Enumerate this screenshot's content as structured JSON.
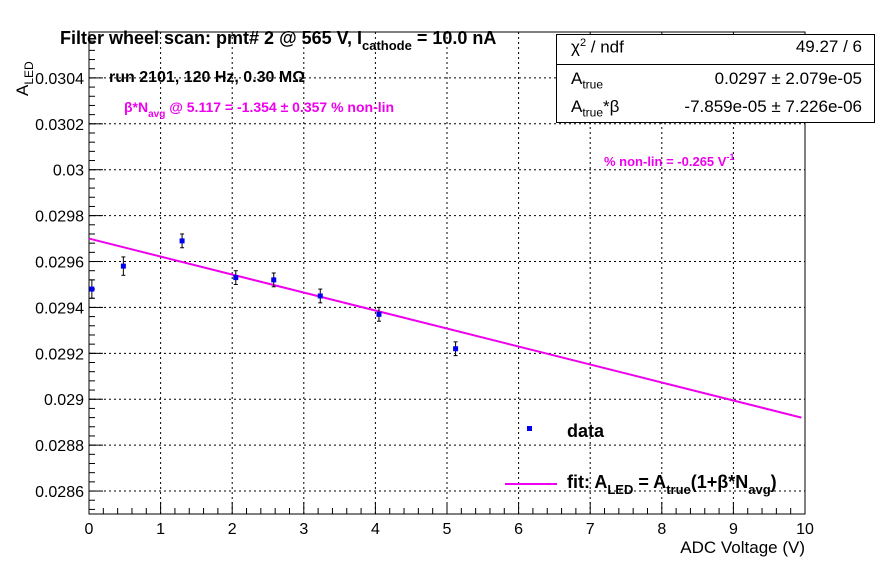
{
  "title": "Filter wheel scan: pmt#   2 @   565 V, I",
  "title_sub": "cathode",
  "title_tail": " = 10.0 nA",
  "run_info": "run 2101, 120 Hz, 0.30 MΩ",
  "nonlin_line": {
    "beta": "β*N",
    "sub": "avg",
    "tail": " @ 5.117 = -1.354 ± 0.357 % non-lin"
  },
  "nonlin_slope": {
    "text": "% non-lin = -0.265 V",
    "sup": "-1"
  },
  "stats": {
    "chi2_label": "χ",
    "chi2_sup": "2",
    "chi2_tail": " / ndf",
    "chi2_value": "49.27 / 6",
    "atrue_label": "A",
    "atrue_sub": "true",
    "atrue_value": "0.0297 ± 2.079e-05",
    "atrueb_label": "A",
    "atrueb_sub": "true",
    "atrueb_tail": "*β",
    "atrueb_value": "-7.859e-05 ± 7.226e-06"
  },
  "legend": {
    "data_label": "data",
    "fit_label": "fit: A",
    "fit_sub1": "LED",
    "fit_mid": " = A",
    "fit_sub2": "true",
    "fit_mid2": "(1+β*N",
    "fit_sub3": "avg",
    "fit_end": ")"
  },
  "colors": {
    "data": "#0000ee",
    "fit": "#ee00ee",
    "text_accent": "#ee00ee"
  },
  "chart_data": {
    "type": "scatter",
    "xlabel": "ADC Voltage (V)",
    "ylabel": "A",
    "ylabel_sub": "LED",
    "xlim": [
      0,
      10
    ],
    "ylim": [
      0.0285,
      0.0306
    ],
    "grid": true,
    "x_ticks": [
      0,
      1,
      2,
      3,
      4,
      5,
      6,
      7,
      8,
      9,
      10
    ],
    "x_tick_labels": [
      "0",
      "1",
      "2",
      "3",
      "4",
      "5",
      "6",
      "7",
      "8",
      "9",
      "10"
    ],
    "y_ticks": [
      0.0286,
      0.0288,
      0.029,
      0.0292,
      0.0294,
      0.0296,
      0.0298,
      0.03,
      0.0302,
      0.0304
    ],
    "y_tick_labels": [
      "0.0286",
      "0.0288",
      "0.029",
      "0.0292",
      "0.0294",
      "0.0296",
      "0.0298",
      "0.03",
      "0.0302",
      "0.0304"
    ],
    "series": [
      {
        "name": "data",
        "x": [
          0.04,
          0.48,
          1.3,
          2.05,
          2.58,
          3.23,
          4.05,
          5.12
        ],
        "y": [
          0.02948,
          0.02958,
          0.02969,
          0.02953,
          0.02952,
          0.02945,
          0.02937,
          0.02922
        ],
        "yerr": [
          4e-05,
          4e-05,
          3e-05,
          3e-05,
          3e-05,
          3e-05,
          3e-05,
          3e-05
        ]
      }
    ],
    "fit": {
      "name": "fit",
      "x0": 0,
      "y0": 0.0297,
      "x1": 9.95,
      "y1": 0.02892
    },
    "legend_position": "bottom-right"
  }
}
